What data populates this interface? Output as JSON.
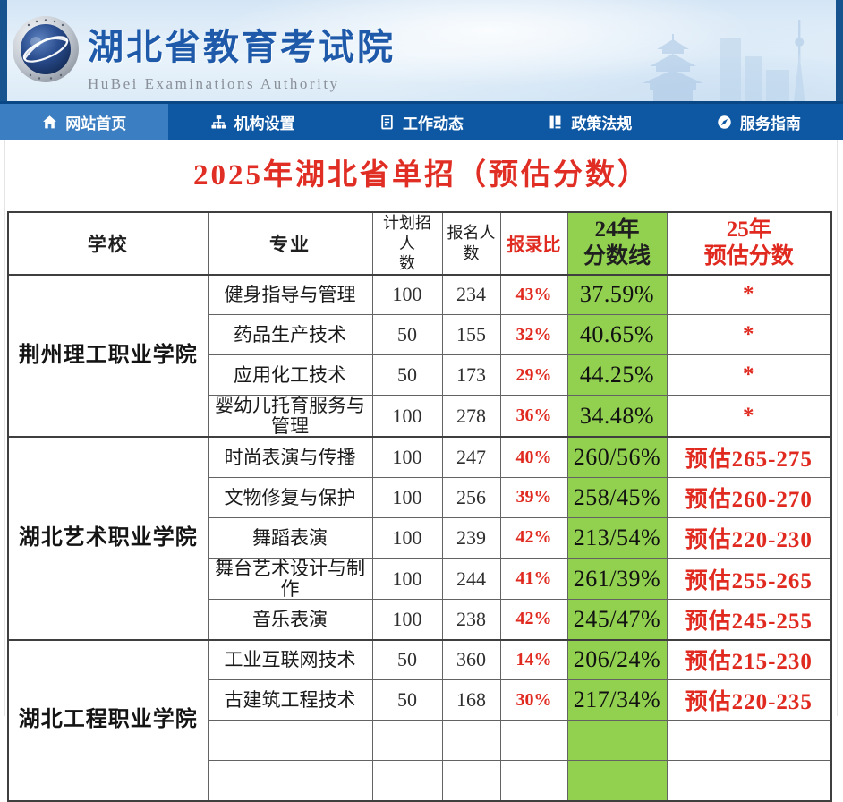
{
  "header": {
    "title": "湖北省教育考试院",
    "subtitle": "HuBei Examinations Authority",
    "logo": "hubei-examinations-emblem"
  },
  "nav": {
    "items": [
      {
        "id": "home",
        "label": "网站首页",
        "icon": "home-icon",
        "active": true
      },
      {
        "id": "org",
        "label": "机构设置",
        "icon": "org-chart-icon",
        "active": false
      },
      {
        "id": "news",
        "label": "工作动态",
        "icon": "document-icon",
        "active": false
      },
      {
        "id": "policy",
        "label": "政策法规",
        "icon": "book-icon",
        "active": false
      },
      {
        "id": "guide",
        "label": "服务指南",
        "icon": "compass-icon",
        "active": false
      }
    ]
  },
  "page": {
    "title": "2025年湖北省单招（预估分数）"
  },
  "table": {
    "headers": {
      "school": "学校",
      "major": "专业",
      "plan": "计划招人\n数",
      "applicants": "报名人\n数",
      "ratio": "报录比",
      "score24": "24年\n分数线",
      "score25": "25年\n预估分数"
    },
    "groups": [
      {
        "school": "荆州理工职业学院",
        "rows": [
          {
            "major": "健身指导与管理",
            "plan": "100",
            "applicants": "234",
            "ratio": "43%",
            "score24": "37.59%",
            "score25": "*"
          },
          {
            "major": "药品生产技术",
            "plan": "50",
            "applicants": "155",
            "ratio": "32%",
            "score24": "40.65%",
            "score25": "*"
          },
          {
            "major": "应用化工技术",
            "plan": "50",
            "applicants": "173",
            "ratio": "29%",
            "score24": "44.25%",
            "score25": "*"
          },
          {
            "major": "婴幼儿托育服务与管理",
            "plan": "100",
            "applicants": "278",
            "ratio": "36%",
            "score24": "34.48%",
            "score25": "*"
          }
        ]
      },
      {
        "school": "湖北艺术职业学院",
        "rows": [
          {
            "major": "时尚表演与传播",
            "plan": "100",
            "applicants": "247",
            "ratio": "40%",
            "score24": "260/56%",
            "score25": "预估265-275"
          },
          {
            "major": "文物修复与保护",
            "plan": "100",
            "applicants": "256",
            "ratio": "39%",
            "score24": "258/45%",
            "score25": "预估260-270"
          },
          {
            "major": "舞蹈表演",
            "plan": "100",
            "applicants": "239",
            "ratio": "42%",
            "score24": "213/54%",
            "score25": "预估220-230"
          },
          {
            "major": "舞台艺术设计与制作",
            "plan": "100",
            "applicants": "244",
            "ratio": "41%",
            "score24": "261/39%",
            "score25": "预估255-265"
          },
          {
            "major": "音乐表演",
            "plan": "100",
            "applicants": "238",
            "ratio": "42%",
            "score24": "245/47%",
            "score25": "预估245-255"
          }
        ]
      },
      {
        "school": "湖北工程职业学院",
        "rows": [
          {
            "major": "工业互联网技术",
            "plan": "50",
            "applicants": "360",
            "ratio": "14%",
            "score24": "206/24%",
            "score25": "预估215-230"
          },
          {
            "major": "古建筑工程技术",
            "plan": "50",
            "applicants": "168",
            "ratio": "30%",
            "score24": "217/34%",
            "score25": "预估220-235"
          },
          {
            "major": "",
            "plan": "",
            "applicants": "",
            "ratio": "",
            "score24": "",
            "score25": ""
          },
          {
            "major": "",
            "plan": "",
            "applicants": "",
            "ratio": "",
            "score24": "",
            "score25": ""
          }
        ]
      }
    ]
  },
  "colors": {
    "nav_blue": "#0d57a3",
    "nav_active_blue": "#3b7ec2",
    "brand_blue": "#1e5aa9",
    "accent_red": "#e02a20",
    "score_green": "#92d050"
  }
}
